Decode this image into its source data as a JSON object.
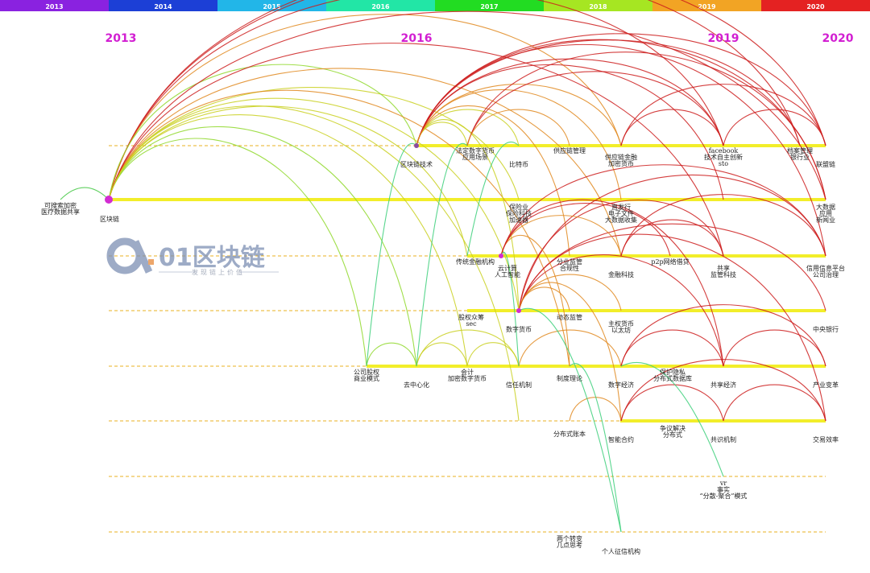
{
  "year_bar": [
    {
      "label": "2013",
      "color": "#8a22e0"
    },
    {
      "label": "2014",
      "color": "#1c3fd6"
    },
    {
      "label": "2015",
      "color": "#22b6e8"
    },
    {
      "label": "2016",
      "color": "#22e6a6"
    },
    {
      "label": "2017",
      "color": "#22dc22"
    },
    {
      "label": "2018",
      "color": "#a6e622"
    },
    {
      "label": "2019",
      "color": "#f2a424"
    },
    {
      "label": "2020",
      "color": "#e42222"
    }
  ],
  "year_labels": [
    "2013",
    "2016",
    "2019",
    "2020"
  ],
  "watermark": {
    "brand": "01区块链",
    "tagline": "发现链上价值"
  },
  "nodes": [
    {
      "label": [
        "可搜索加密",
        "医疗数据共享"
      ]
    },
    {
      "label": [
        "区块链"
      ]
    },
    {
      "label": [
        "区块链技术"
      ]
    },
    {
      "label": [
        "法定数字货币",
        "应用场景"
      ]
    },
    {
      "label": [
        "比特币"
      ]
    },
    {
      "label": [
        "供应链管理"
      ]
    },
    {
      "label": [
        "供应链金融",
        "加密货币"
      ]
    },
    {
      "label": [
        "facebook",
        "技术自主创新",
        "sto"
      ]
    },
    {
      "label": [
        "档案管理",
        "银行业"
      ]
    },
    {
      "label": [
        "联盟链"
      ]
    },
    {
      "label": [
        "保险业",
        "保险科技",
        "加速器"
      ]
    },
    {
      "label": [
        "直发行",
        "电子文件",
        "大数据收集"
      ]
    },
    {
      "label": [
        "大数据",
        "应用",
        "新闻业"
      ]
    },
    {
      "label": [
        "传统金融机构"
      ]
    },
    {
      "label": [
        "云计算",
        "人工智能"
      ]
    },
    {
      "label": [
        "分业监管",
        "合规性"
      ]
    },
    {
      "label": [
        "p2p网络借贷"
      ]
    },
    {
      "label": [
        "共享",
        "监管科技"
      ]
    },
    {
      "label": [
        "金融科技"
      ]
    },
    {
      "label": [
        "信用信息平台",
        "公司治理"
      ]
    },
    {
      "label": [
        "股权众筹",
        "sec"
      ]
    },
    {
      "label": [
        "数字货币"
      ]
    },
    {
      "label": [
        "动态监管"
      ]
    },
    {
      "label": [
        "主权货币",
        "以太坊"
      ]
    },
    {
      "label": [
        "中央银行"
      ]
    },
    {
      "label": [
        "公司股权",
        "商业模式"
      ]
    },
    {
      "label": [
        "去中心化"
      ]
    },
    {
      "label": [
        "会计",
        "加密数字货币"
      ]
    },
    {
      "label": [
        "信任机制"
      ]
    },
    {
      "label": [
        "制度理论"
      ]
    },
    {
      "label": [
        "数字经济"
      ]
    },
    {
      "label": [
        "保护隐私",
        "分布式数据库"
      ]
    },
    {
      "label": [
        "共享经济"
      ]
    },
    {
      "label": [
        "产业变革"
      ]
    },
    {
      "label": [
        "分布式账本"
      ]
    },
    {
      "label": [
        "智能合约"
      ]
    },
    {
      "label": [
        "争议解决",
        "分布式"
      ]
    },
    {
      "label": [
        "共识机制"
      ]
    },
    {
      "label": [
        "交易效率"
      ]
    },
    {
      "label": [
        "vr",
        "事实",
        "“分散-聚合”模式"
      ]
    },
    {
      "label": [
        "两个转变",
        "几点思考"
      ]
    },
    {
      "label": [
        "个人征信机构"
      ]
    }
  ]
}
